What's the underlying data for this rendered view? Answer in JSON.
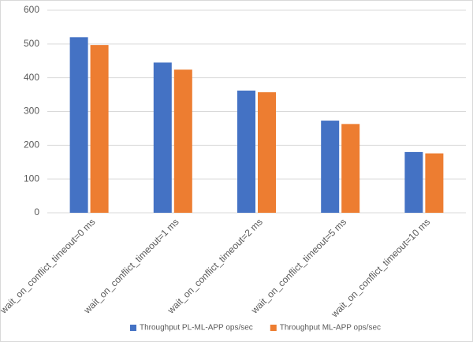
{
  "chart_data": {
    "type": "bar",
    "categories": [
      "wait_on_conflict_timeout=0 ms",
      "wait_on_conflict_timeout=1 ms",
      "wait_on_conflict_timeout=2 ms",
      "wait_on_conflict_timeout=5 ms",
      "wait_on_conflict_timeout=10 ms"
    ],
    "series": [
      {
        "name": "Throughput PL-ML-APP ops/sec",
        "color": "#4472c4",
        "values": [
          520,
          445,
          362,
          273,
          180
        ]
      },
      {
        "name": "Throughput ML-APP ops/sec",
        "color": "#ed7d31",
        "values": [
          497,
          424,
          357,
          263,
          176
        ]
      }
    ],
    "ylim": [
      0,
      600
    ],
    "yticks": [
      0,
      100,
      200,
      300,
      400,
      500,
      600
    ],
    "grid": true,
    "legend": "bottom"
  }
}
